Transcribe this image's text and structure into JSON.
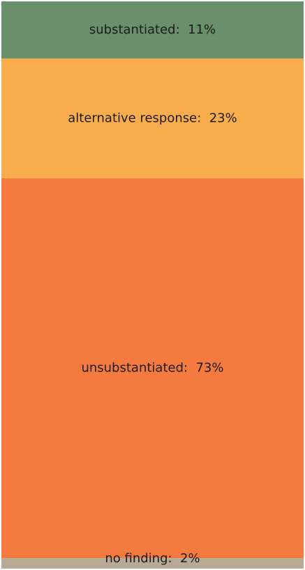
{
  "chart_data": {
    "type": "bar",
    "orientation": "vertical-stacked-single-column",
    "categories": [
      "substantiated",
      "alternative response",
      "unsubstantiated",
      "no finding"
    ],
    "values": [
      11,
      23,
      73,
      2
    ],
    "unit": "%",
    "labels": [
      "substantiated:  11%",
      "alternative response:  23%",
      "unsubstantiated:  73%",
      "no finding:  2%"
    ],
    "colors": [
      "#6a8f6b",
      "#f9ad4c",
      "#f47b3f",
      "#b7aa96"
    ],
    "label_color": "#1a1a1a",
    "legend": "none",
    "grid": false
  }
}
